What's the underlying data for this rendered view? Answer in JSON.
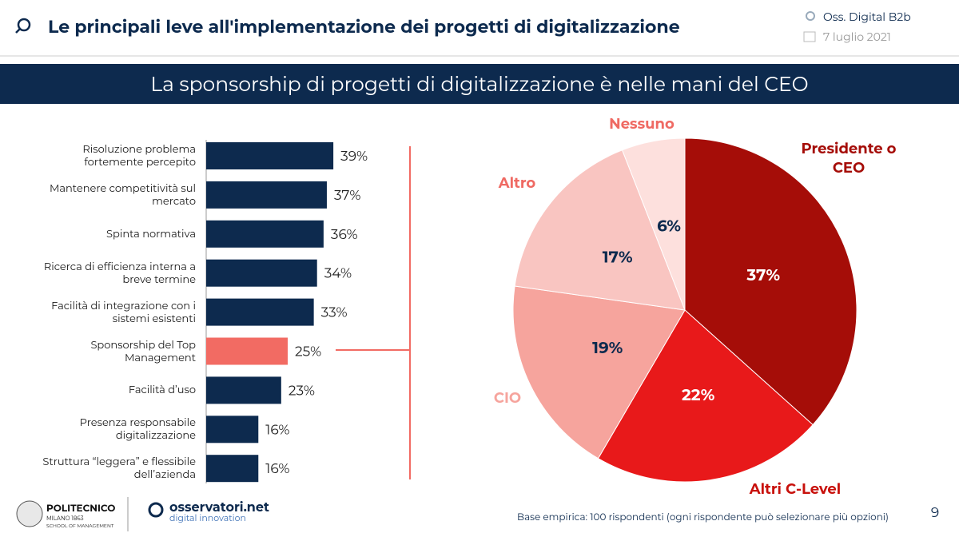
{
  "header": {
    "title": "Le principali leve all'implementazione dei progetti di digitalizzazione",
    "source": "Oss. Digital B2b",
    "date": "7 luglio 2021"
  },
  "banner": "La sponsorship di progetti di digitalizzazione è nelle mani del CEO",
  "chart_data": [
    {
      "type": "hbar",
      "categories": [
        "Risoluzione problema fortemente percepito",
        "Mantenere competitività sul mercato",
        "Spinta normativa",
        "Ricerca di efficienza interna a breve termine",
        "Facilità di integrazione con i sistemi esistenti",
        "Sponsorship del Top Management",
        "Facilità d’uso",
        "Presenza responsabile digitalizzazione",
        "Struttura “leggera” e flessibile dell’azienda"
      ],
      "values": [
        39,
        37,
        36,
        34,
        33,
        25,
        23,
        16,
        16
      ],
      "value_labels": [
        "39%",
        "37%",
        "36%",
        "34%",
        "33%",
        "25%",
        "23%",
        "16%",
        "16%"
      ],
      "colors": [
        "#0d2a4e",
        "#0d2a4e",
        "#0d2a4e",
        "#0d2a4e",
        "#0d2a4e",
        "#f26b63",
        "#0d2a4e",
        "#0d2a4e",
        "#0d2a4e"
      ]
    },
    {
      "type": "pie",
      "categories": [
        "Presidente o CEO",
        "Altri C-Level",
        "CIO",
        "Altro",
        "Nessuno"
      ],
      "values": [
        37,
        22,
        19,
        17,
        6
      ],
      "value_labels": [
        "37%",
        "22%",
        "19%",
        "17%",
        "6%"
      ],
      "colors": [
        "#a50d08",
        "#e8191a",
        "#f6a49d",
        "#f9c5c1",
        "#fde0dd"
      ],
      "label_colors": [
        "#a50d08",
        "#c8110c",
        "#f6a49d",
        "#ef6a63",
        "#ef6a63"
      ],
      "value_label_colors": [
        "#ffffff",
        "#ffffff",
        "#0d2a4e",
        "#0d2a4e",
        "#0d2a4e"
      ]
    }
  ],
  "footer": {
    "note": "Base empirica: 100 rispondenti (ogni rispondente può selezionare più opzioni)",
    "page": "9",
    "logo1": "POLITECNICO",
    "logo1_sub": "MILANO 1863",
    "logo1_sub2": "SCHOOL OF MANAGEMENT",
    "logo2": "osservatori.net",
    "logo2_sub": "digital innovation"
  }
}
